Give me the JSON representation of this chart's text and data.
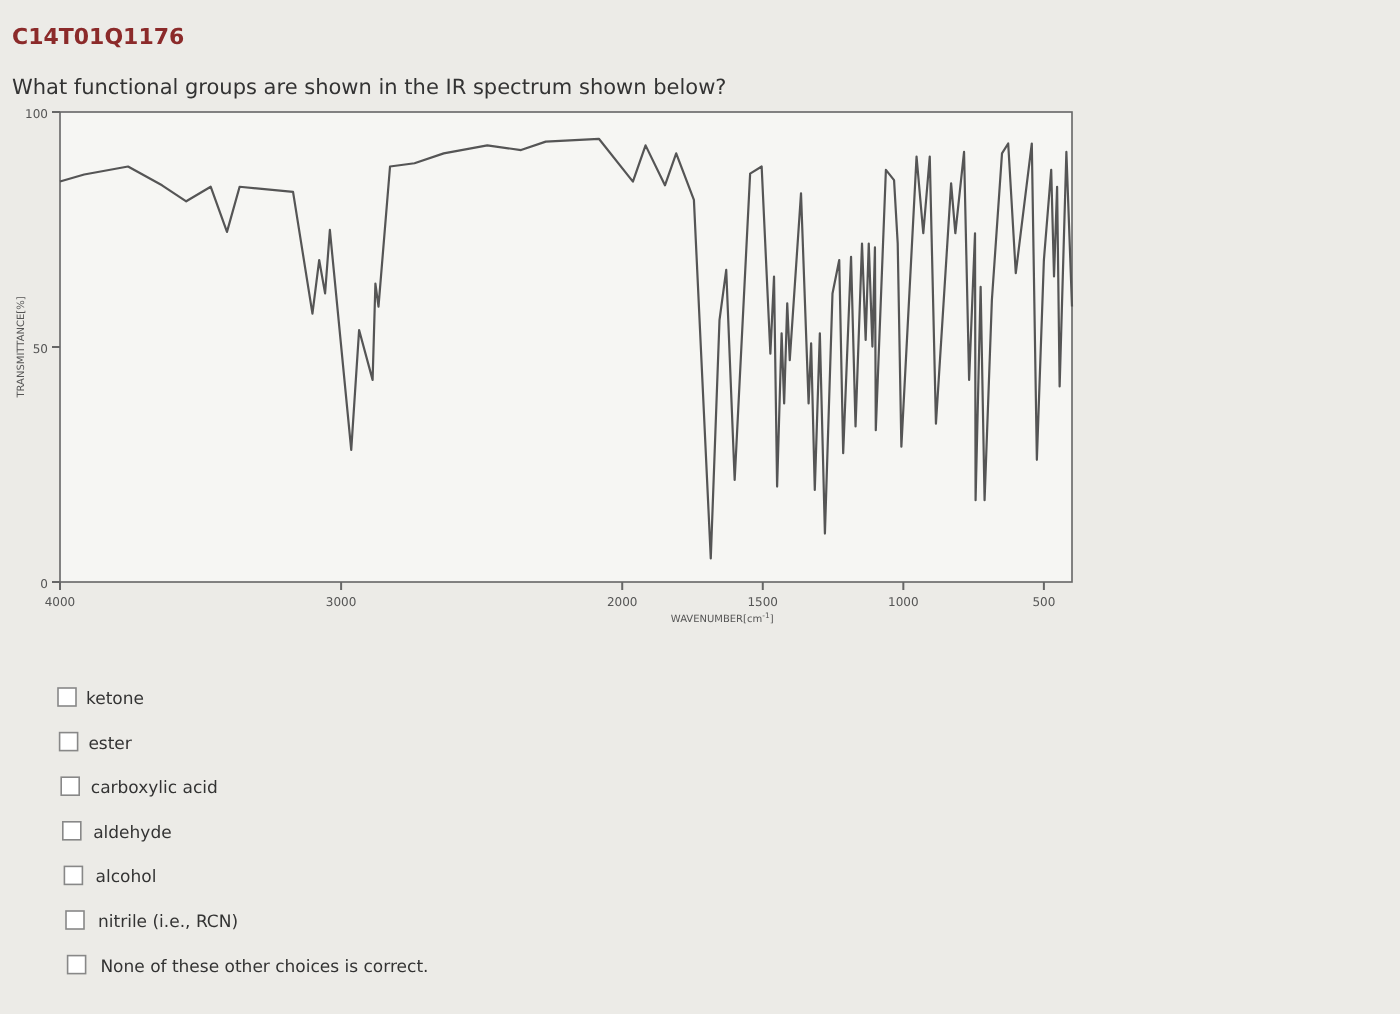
{
  "chart_data": {
    "type": "line",
    "title": "C14T01Q1176",
    "subtitle": "What functional groups are shown in the IR spectrum shown below?",
    "xlabel": "WAVENUMBER[cm$^{-1}$]",
    "ylabel": "TRANSMITTANCE[%]",
    "x": [
      4000,
      3914,
      3758,
      3637,
      3551,
      3464,
      3406,
      3361,
      3171,
      3102,
      3078,
      3057,
      3040,
      2964,
      2936,
      2888,
      2878,
      2867,
      2826,
      2739,
      2635,
      2480,
      2360,
      2272,
      2083,
      1962,
      1917,
      1848,
      1808,
      1745,
      1685,
      1654,
      1630,
      1600,
      1545,
      1504,
      1473,
      1460,
      1449,
      1433,
      1424,
      1413,
      1404,
      1364,
      1337,
      1328,
      1315,
      1297,
      1279,
      1252,
      1228,
      1214,
      1186,
      1170,
      1147,
      1134,
      1123,
      1110,
      1101,
      1098,
      1062,
      1033,
      1020,
      1007,
      953,
      929,
      906,
      884,
      830,
      815,
      784,
      766,
      745,
      743,
      725,
      711,
      685,
      649,
      627,
      600,
      543,
      525,
      500,
      474,
      464,
      453,
      444,
      420,
      400
    ],
    "series": [
      {
        "color": "#555555",
        "values": [
          85.2,
          86.7,
          88.4,
          84.4,
          81,
          84.1,
          74.5,
          84.1,
          83,
          57.1,
          68.5,
          61.4,
          74.9,
          28.1,
          53.6,
          43,
          63.5,
          58.6,
          88.4,
          89.1,
          91.2,
          92.9,
          91.9,
          93.7,
          94.3,
          85.2,
          92.9,
          84.4,
          91.2,
          81.3,
          5,
          55.7,
          66.4,
          21.7,
          86.9,
          88.4,
          48.6,
          65,
          20.3,
          52.9,
          38,
          59.3,
          47.2,
          82.7,
          38,
          50.8,
          19.6,
          52.9,
          10.3,
          61.4,
          68.5,
          27.4,
          69.2,
          33.1,
          72,
          51.5,
          72,
          50.1,
          71.2,
          32.3,
          87.7,
          85.5,
          72,
          28.8,
          90.5,
          74.2,
          90.5,
          33.7,
          84.8,
          74.2,
          91.5,
          43,
          74.2,
          17.4,
          62.8,
          17.4,
          60,
          91.2,
          93.3,
          65.7,
          93.3,
          26,
          68.5,
          87.7,
          65,
          84.1,
          41.6,
          91.5,
          58.6
        ]
      }
    ],
    "xlim": [
      4000,
      400
    ],
    "xticks": [
      4000,
      3000,
      2000,
      1500,
      1000,
      500
    ],
    "ylim": [
      0,
      100
    ],
    "yticks": [
      0,
      50,
      100
    ],
    "grid": false,
    "marker": "none",
    "line_style": "solid",
    "annotations": [
      "ketone",
      "ester",
      "carboxylic acid",
      "aldehyde",
      "alcohol",
      "nitrile (i.e., RCN)",
      "None of these other choices is correct."
    ]
  }
}
